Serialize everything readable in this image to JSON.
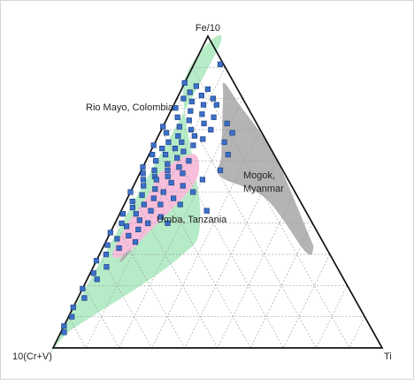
{
  "chart_data": {
    "type": "scatter",
    "subtype": "ternary",
    "title": "",
    "axes": {
      "top": "Fe/10",
      "left": "10(Cr+V)",
      "right": "Ti"
    },
    "grid": true,
    "grid_step": 0.1,
    "marker": {
      "shape": "square",
      "color": "#3b6fc9",
      "edge_color": "#1d3f7a"
    },
    "fields": [
      {
        "name": "Rio Mayo, Colombia",
        "color": "#b6ebc8",
        "points": [
          [
            0.95,
            0.05,
            0.0
          ],
          [
            0.84,
            0.0,
            0.16
          ],
          [
            0.42,
            0.25,
            0.33
          ],
          [
            0.28,
            0.24,
            0.48
          ],
          [
            0.06,
            0.03,
            0.91
          ],
          [
            0.02,
            0.0,
            0.98
          ]
        ]
      },
      {
        "name": "Mogok, Myanmar",
        "color": "#b4b4b4",
        "points": [
          [
            0.85,
            0.12,
            0.03
          ],
          [
            0.78,
            0.2,
            0.02
          ],
          [
            0.62,
            0.38,
            0.0
          ],
          [
            0.37,
            0.6,
            0.03
          ],
          [
            0.32,
            0.64,
            0.04
          ],
          [
            0.31,
            0.62,
            0.07
          ],
          [
            0.48,
            0.42,
            0.1
          ],
          [
            0.55,
            0.25,
            0.2
          ],
          [
            0.62,
            0.22,
            0.16
          ],
          [
            0.8,
            0.14,
            0.06
          ]
        ]
      },
      {
        "name": "Umba, Tanzania",
        "color": "#f7bfdc",
        "points": [
          [
            0.62,
            0.12,
            0.26
          ],
          [
            0.6,
            0.16,
            0.24
          ],
          [
            0.52,
            0.18,
            0.3
          ],
          [
            0.38,
            0.12,
            0.5
          ],
          [
            0.3,
            0.08,
            0.62
          ],
          [
            0.3,
            0.04,
            0.66
          ],
          [
            0.4,
            0.04,
            0.56
          ],
          [
            0.5,
            0.06,
            0.44
          ],
          [
            0.56,
            0.06,
            0.38
          ]
        ]
      }
    ],
    "extra_blobs": [
      {
        "field": "Mogok, Myanmar",
        "color": "#b4b4b4",
        "points": [
          [
            0.31,
            0.08,
            0.61
          ],
          [
            0.31,
            0.09,
            0.6
          ],
          [
            0.28,
            0.08,
            0.64
          ],
          [
            0.28,
            0.07,
            0.65
          ]
        ]
      }
    ],
    "points": [
      [
        0.91,
        0.08,
        0.01
      ],
      [
        0.85,
        0.0,
        0.15
      ],
      [
        0.84,
        0.04,
        0.12
      ],
      [
        0.83,
        0.08,
        0.09
      ],
      [
        0.82,
        0.03,
        0.15
      ],
      [
        0.81,
        0.07,
        0.12
      ],
      [
        0.8,
        0.02,
        0.18
      ],
      [
        0.8,
        0.11,
        0.09
      ],
      [
        0.79,
        0.05,
        0.16
      ],
      [
        0.78,
        0.09,
        0.13
      ],
      [
        0.78,
        0.13,
        0.09
      ],
      [
        0.77,
        0.01,
        0.22
      ],
      [
        0.76,
        0.06,
        0.18
      ],
      [
        0.75,
        0.1,
        0.15
      ],
      [
        0.74,
        0.03,
        0.23
      ],
      [
        0.74,
        0.14,
        0.12
      ],
      [
        0.73,
        0.07,
        0.2
      ],
      [
        0.72,
        0.12,
        0.16
      ],
      [
        0.71,
        0.0,
        0.29
      ],
      [
        0.71,
        0.05,
        0.24
      ],
      [
        0.7,
        0.09,
        0.21
      ],
      [
        0.7,
        0.15,
        0.15
      ],
      [
        0.69,
        0.02,
        0.29
      ],
      [
        0.68,
        0.06,
        0.26
      ],
      [
        0.68,
        0.11,
        0.21
      ],
      [
        0.67,
        0.14,
        0.19
      ],
      [
        0.66,
        0.04,
        0.3
      ],
      [
        0.66,
        0.08,
        0.26
      ],
      [
        0.65,
        0.0,
        0.35
      ],
      [
        0.65,
        0.12,
        0.23
      ],
      [
        0.64,
        0.03,
        0.33
      ],
      [
        0.64,
        0.07,
        0.29
      ],
      [
        0.63,
        0.1,
        0.27
      ],
      [
        0.62,
        0.01,
        0.37
      ],
      [
        0.62,
        0.05,
        0.33
      ],
      [
        0.61,
        0.09,
        0.3
      ],
      [
        0.6,
        0.13,
        0.27
      ],
      [
        0.6,
        0.03,
        0.37
      ],
      [
        0.59,
        0.07,
        0.34
      ],
      [
        0.58,
        0.0,
        0.42
      ],
      [
        0.58,
        0.11,
        0.31
      ],
      [
        0.57,
        0.04,
        0.39
      ],
      [
        0.57,
        0.08,
        0.35
      ],
      [
        0.56,
        0.01,
        0.43
      ],
      [
        0.56,
        0.13,
        0.31
      ],
      [
        0.55,
        0.05,
        0.4
      ],
      [
        0.55,
        0.09,
        0.36
      ],
      [
        0.54,
        0.02,
        0.44
      ],
      [
        0.54,
        0.06,
        0.4
      ],
      [
        0.53,
        0.11,
        0.36
      ],
      [
        0.52,
        0.03,
        0.45
      ],
      [
        0.52,
        0.15,
        0.33
      ],
      [
        0.51,
        0.07,
        0.42
      ],
      [
        0.5,
        0.0,
        0.5
      ],
      [
        0.5,
        0.1,
        0.4
      ],
      [
        0.49,
        0.04,
        0.47
      ],
      [
        0.48,
        0.08,
        0.44
      ],
      [
        0.48,
        0.14,
        0.38
      ],
      [
        0.47,
        0.02,
        0.51
      ],
      [
        0.46,
        0.06,
        0.48
      ],
      [
        0.46,
        0.11,
        0.43
      ],
      [
        0.45,
        0.03,
        0.52
      ],
      [
        0.44,
        0.09,
        0.47
      ],
      [
        0.43,
        0.01,
        0.56
      ],
      [
        0.43,
        0.05,
        0.52
      ],
      [
        0.42,
        0.13,
        0.45
      ],
      [
        0.41,
        0.07,
        0.52
      ],
      [
        0.4,
        0.02,
        0.58
      ],
      [
        0.4,
        0.1,
        0.5
      ],
      [
        0.39,
        0.04,
        0.57
      ],
      [
        0.38,
        0.08,
        0.54
      ],
      [
        0.37,
        0.0,
        0.63
      ],
      [
        0.36,
        0.06,
        0.58
      ],
      [
        0.35,
        0.03,
        0.62
      ],
      [
        0.34,
        0.09,
        0.57
      ],
      [
        0.33,
        0.01,
        0.66
      ],
      [
        0.32,
        0.05,
        0.63
      ],
      [
        0.3,
        0.02,
        0.68
      ],
      [
        0.28,
        0.0,
        0.72
      ],
      [
        0.26,
        0.04,
        0.7
      ],
      [
        0.24,
        0.01,
        0.75
      ],
      [
        0.22,
        0.03,
        0.75
      ],
      [
        0.19,
        0.0,
        0.81
      ],
      [
        0.16,
        0.02,
        0.82
      ],
      [
        0.13,
        0.0,
        0.87
      ],
      [
        0.1,
        0.01,
        0.89
      ],
      [
        0.07,
        0.0,
        0.93
      ],
      [
        0.05,
        0.01,
        0.94
      ],
      [
        0.72,
        0.19,
        0.09
      ],
      [
        0.69,
        0.22,
        0.09
      ],
      [
        0.66,
        0.21,
        0.13
      ],
      [
        0.62,
        0.24,
        0.14
      ],
      [
        0.57,
        0.24,
        0.19
      ],
      [
        0.54,
        0.2,
        0.26
      ],
      [
        0.5,
        0.19,
        0.31
      ],
      [
        0.46,
        0.17,
        0.37
      ],
      [
        0.44,
        0.26,
        0.3
      ],
      [
        0.4,
        0.16,
        0.44
      ]
    ]
  }
}
